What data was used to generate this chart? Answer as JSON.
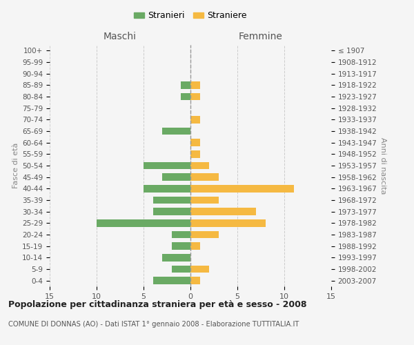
{
  "age_groups": [
    "100+",
    "95-99",
    "90-94",
    "85-89",
    "80-84",
    "75-79",
    "70-74",
    "65-69",
    "60-64",
    "55-59",
    "50-54",
    "45-49",
    "40-44",
    "35-39",
    "30-34",
    "25-29",
    "20-24",
    "15-19",
    "10-14",
    "5-9",
    "0-4"
  ],
  "year_labels": [
    "≤ 1907",
    "1908-1912",
    "1913-1917",
    "1918-1922",
    "1923-1927",
    "1928-1932",
    "1933-1937",
    "1938-1942",
    "1943-1947",
    "1948-1952",
    "1953-1957",
    "1958-1962",
    "1963-1967",
    "1968-1972",
    "1973-1977",
    "1978-1982",
    "1983-1987",
    "1988-1992",
    "1993-1997",
    "1998-2002",
    "2003-2007"
  ],
  "males": [
    0,
    0,
    0,
    1,
    1,
    0,
    0,
    3,
    0,
    0,
    5,
    3,
    5,
    4,
    4,
    10,
    2,
    2,
    3,
    2,
    4
  ],
  "females": [
    0,
    0,
    0,
    1,
    1,
    0,
    1,
    0,
    1,
    1,
    2,
    3,
    11,
    3,
    7,
    8,
    3,
    1,
    0,
    2,
    1
  ],
  "male_color": "#6aaa64",
  "female_color": "#f5b942",
  "title": "Popolazione per cittadinanza straniera per età e sesso - 2008",
  "subtitle": "COMUNE DI DONNAS (AO) - Dati ISTAT 1° gennaio 2008 - Elaborazione TUTTITALIA.IT",
  "header_left": "Maschi",
  "header_right": "Femmine",
  "ylabel_left": "Fasce di età",
  "ylabel_right": "Anni di nascita",
  "legend_stranieri": "Stranieri",
  "legend_straniere": "Straniere",
  "xlim": 15,
  "background_color": "#f5f5f5",
  "grid_color": "#cccccc"
}
